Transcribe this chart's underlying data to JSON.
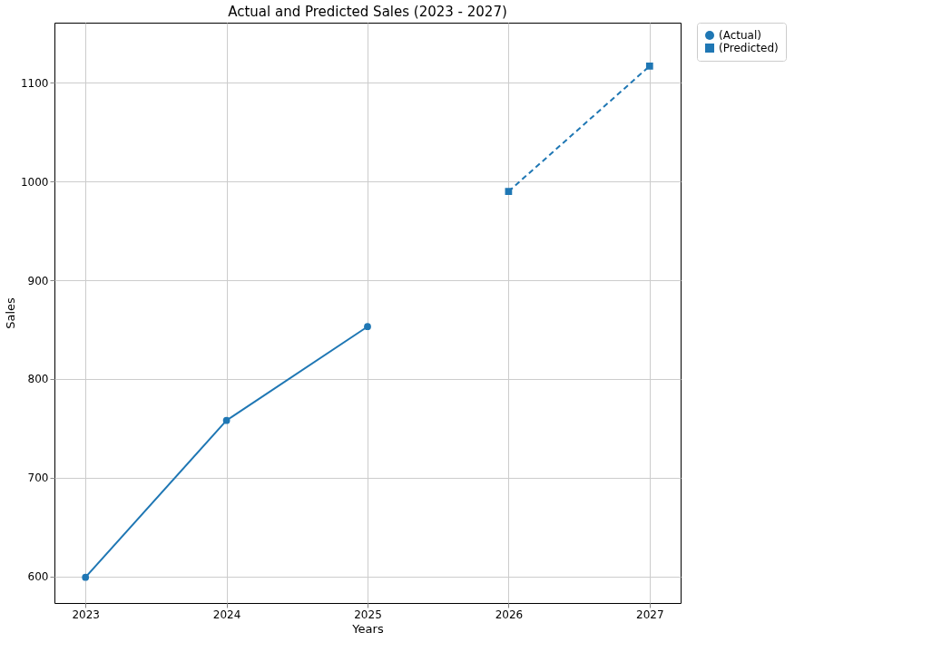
{
  "chart_data": {
    "type": "line",
    "title": "Actual and Predicted Sales (2023 - 2027)",
    "xlabel": "Years",
    "ylabel": "Sales",
    "series": [
      {
        "name": "(Actual)",
        "color": "#1f77b4",
        "x": [
          2023,
          2024,
          2025
        ],
        "values": [
          599,
          758,
          853
        ],
        "marker": "circle",
        "line_style": "solid"
      },
      {
        "name": "(Predicted)",
        "color": "#1f77b4",
        "x": [
          2026,
          2027
        ],
        "values": [
          990,
          1117
        ],
        "marker": "square",
        "line_style": "dashed"
      }
    ],
    "xlim": [
      2022.78,
      2027.22
    ],
    "xticks": [
      2023,
      2024,
      2025,
      2026,
      2027
    ],
    "ylim": [
      573,
      1161
    ],
    "yticks": [
      600,
      700,
      800,
      900,
      1000,
      1100
    ],
    "grid": true,
    "legend": "top right"
  }
}
